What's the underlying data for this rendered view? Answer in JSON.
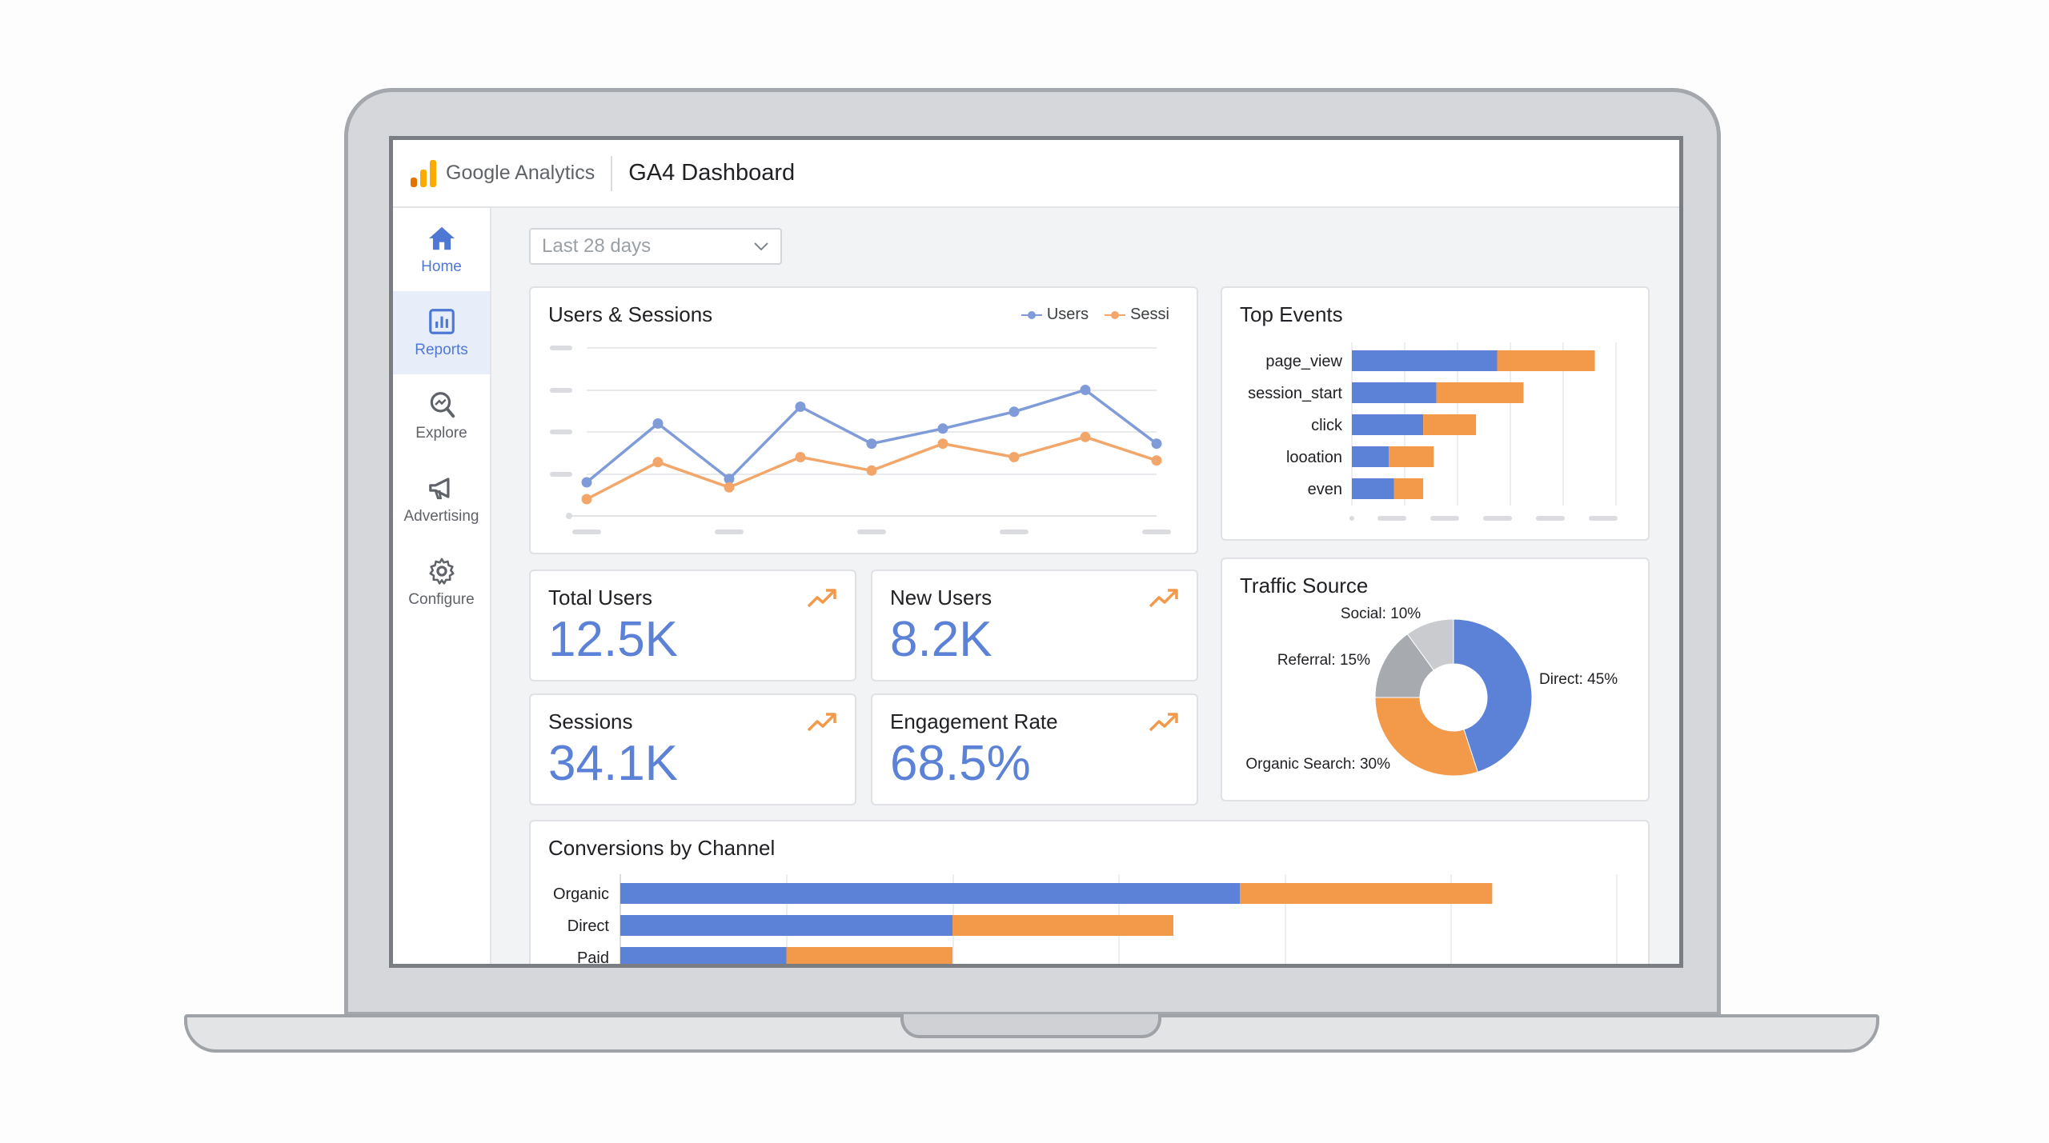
{
  "header": {
    "brand": "Google Analytics",
    "title": "GA4 Dashboard"
  },
  "sidebar": {
    "items": [
      {
        "label": "Home",
        "icon": "home-icon"
      },
      {
        "label": "Reports",
        "icon": "bar-chart-icon"
      },
      {
        "label": "Explore",
        "icon": "explore-icon"
      },
      {
        "label": "Advertising",
        "icon": "megaphone-icon"
      },
      {
        "label": "Configure",
        "icon": "gear-icon"
      }
    ]
  },
  "date_range": {
    "selected": "Last 28 days"
  },
  "colors": {
    "users": "#7f9bd8",
    "sessions": "#f2a66a",
    "primary": "#5b82d6",
    "secondary": "#f2994a",
    "grey": "#a7aaae",
    "light_grey": "#c9cbcf"
  },
  "kpis": [
    {
      "label": "Total Users",
      "value": "12.5K"
    },
    {
      "label": "New Users",
      "value": "8.2K"
    },
    {
      "label": "Sessions",
      "value": "34.1K"
    },
    {
      "label": "Engagement Rate",
      "value": "68.5%"
    }
  ],
  "cards": {
    "users_sessions": "Users & Sessions",
    "top_events": "Top Events",
    "traffic_source": "Traffic Source",
    "conversions": "Conversions by Channel"
  },
  "legend": {
    "users": "Users",
    "sessions": "Sessi"
  },
  "chart_data": [
    {
      "type": "line",
      "title": "Users & Sessions",
      "x": [
        1,
        2,
        3,
        4,
        5,
        6,
        7,
        8,
        9
      ],
      "series": [
        {
          "name": "Users",
          "values": [
            20,
            55,
            22,
            65,
            43,
            52,
            62,
            75,
            43
          ]
        },
        {
          "name": "Sessi",
          "values": [
            10,
            32,
            17,
            35,
            27,
            43,
            35,
            47,
            33
          ]
        }
      ],
      "ylim": [
        0,
        100
      ],
      "grid": true
    },
    {
      "type": "bar",
      "orientation": "horizontal",
      "stacked": true,
      "title": "Top Events",
      "categories": [
        "page_view",
        "session_start",
        "click",
        "looation",
        "even"
      ],
      "series": [
        {
          "values": [
            55,
            32,
            27,
            14,
            16
          ]
        },
        {
          "values": [
            37,
            33,
            20,
            17,
            11
          ]
        }
      ],
      "xlim": [
        0,
        100
      ],
      "grid": true
    },
    {
      "type": "pie",
      "title": "Traffic Source",
      "donut": true,
      "slices": [
        {
          "label": "Direct: 45%",
          "value": 45,
          "color": "#5b82d6"
        },
        {
          "label": "Organic Search: 30%",
          "value": 30,
          "color": "#f2994a"
        },
        {
          "label": "Referral: 15%",
          "value": 15,
          "color": "#a7aaae"
        },
        {
          "label": "Social: 10%",
          "value": 10,
          "color": "#c9cbcf"
        }
      ]
    },
    {
      "type": "bar",
      "orientation": "horizontal",
      "stacked": true,
      "title": "Conversions by Channel",
      "categories": [
        "Organic",
        "Direct",
        "Paid"
      ],
      "series": [
        {
          "values": [
            3.73,
            2.0,
            1.0
          ]
        },
        {
          "values": [
            1.52,
            1.33,
            1.0
          ]
        }
      ],
      "xlim": [
        0,
        6
      ],
      "grid": true
    }
  ]
}
